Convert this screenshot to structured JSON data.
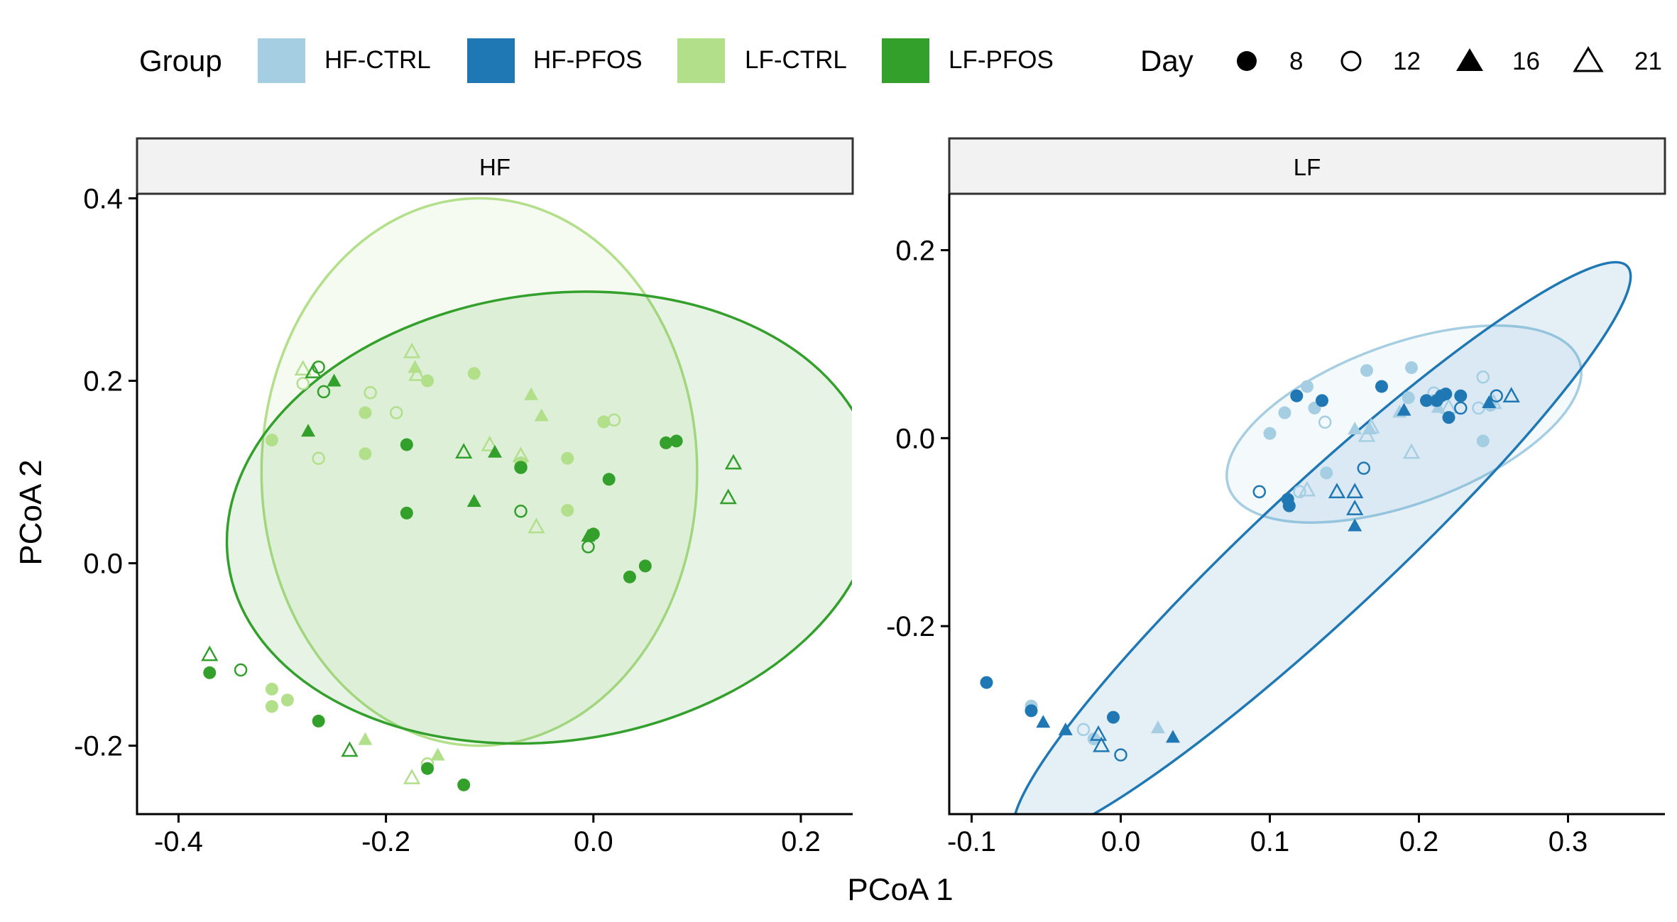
{
  "legend": {
    "group_title": "Group",
    "groups": [
      {
        "name": "HF-CTRL",
        "color": "#a6cee3"
      },
      {
        "name": "HF-PFOS",
        "color": "#1f78b4"
      },
      {
        "name": "LF-CTRL",
        "color": "#b2df8a"
      },
      {
        "name": "LF-PFOS",
        "color": "#33a02c"
      }
    ],
    "day_title": "Day",
    "days": [
      {
        "label": "8",
        "shape": "filled-circle"
      },
      {
        "label": "12",
        "shape": "open-circle"
      },
      {
        "label": "16",
        "shape": "filled-triangle"
      },
      {
        "label": "21",
        "shape": "open-triangle"
      }
    ]
  },
  "chart_data": [
    {
      "type": "scatter",
      "panel": "HF",
      "xlabel": "PCoA 1",
      "ylabel": "PCoA 2",
      "xlim": [
        -0.44,
        0.25
      ],
      "ylim": [
        -0.275,
        0.405
      ],
      "xticks": [
        "-0.4",
        "-0.2",
        "0.0",
        "0.2"
      ],
      "xtick_values": [
        -0.4,
        -0.2,
        0.0,
        0.2
      ],
      "yticks": [
        "0.4",
        "0.2",
        "0.0",
        "-0.2"
      ],
      "ytick_values": [
        0.4,
        0.2,
        0.0,
        -0.2
      ],
      "ellipses": [
        {
          "group": "LF-CTRL",
          "color": "#b2df8a",
          "center": [
            -0.11,
            0.1
          ],
          "rx": 0.21,
          "ry": 0.3,
          "angle": 0
        },
        {
          "group": "LF-PFOS",
          "color": "#33a02c",
          "center": [
            -0.04,
            0.05
          ],
          "rx": 0.315,
          "ry": 0.245,
          "angle": 8
        }
      ],
      "series": [
        {
          "name": "LF-CTRL",
          "color": "#b2df8a",
          "points": [
            [
              -0.31,
              0.135,
              8
            ],
            [
              -0.22,
              0.165,
              8
            ],
            [
              -0.22,
              0.12,
              8
            ],
            [
              -0.16,
              0.2,
              8
            ],
            [
              -0.115,
              0.208,
              8
            ],
            [
              -0.07,
              0.11,
              8
            ],
            [
              -0.025,
              0.115,
              8
            ],
            [
              -0.025,
              0.058,
              8
            ],
            [
              0.01,
              0.155,
              8
            ],
            [
              -0.31,
              -0.138,
              8
            ],
            [
              -0.31,
              -0.157,
              8
            ],
            [
              -0.295,
              -0.15,
              8
            ],
            [
              -0.28,
              0.197,
              12
            ],
            [
              -0.265,
              0.115,
              12
            ],
            [
              -0.215,
              0.187,
              12
            ],
            [
              -0.19,
              0.165,
              12
            ],
            [
              0.02,
              0.157,
              12
            ],
            [
              -0.16,
              -0.22,
              12
            ],
            [
              -0.172,
              0.215,
              16
            ],
            [
              -0.06,
              0.185,
              16
            ],
            [
              -0.05,
              0.162,
              16
            ],
            [
              -0.22,
              -0.193,
              16
            ],
            [
              -0.15,
              -0.21,
              16
            ],
            [
              -0.28,
              0.213,
              21
            ],
            [
              -0.175,
              0.232,
              21
            ],
            [
              -0.17,
              0.207,
              21
            ],
            [
              -0.1,
              0.13,
              21
            ],
            [
              -0.07,
              0.118,
              21
            ],
            [
              -0.055,
              0.04,
              21
            ],
            [
              -0.175,
              -0.235,
              21
            ]
          ]
        },
        {
          "name": "LF-PFOS",
          "color": "#33a02c",
          "points": [
            [
              -0.18,
              0.13,
              8
            ],
            [
              -0.18,
              0.055,
              8
            ],
            [
              -0.07,
              0.105,
              8
            ],
            [
              0.015,
              0.092,
              8
            ],
            [
              0.0,
              0.032,
              8
            ],
            [
              0.07,
              0.132,
              8
            ],
            [
              0.08,
              0.134,
              8
            ],
            [
              0.035,
              -0.015,
              8
            ],
            [
              0.05,
              -0.003,
              8
            ],
            [
              -0.37,
              -0.12,
              8
            ],
            [
              -0.265,
              -0.173,
              8
            ],
            [
              -0.16,
              -0.225,
              8
            ],
            [
              -0.125,
              -0.243,
              8
            ],
            [
              -0.265,
              0.215,
              12
            ],
            [
              -0.26,
              0.188,
              12
            ],
            [
              -0.07,
              0.105,
              12
            ],
            [
              -0.07,
              0.057,
              12
            ],
            [
              -0.005,
              0.018,
              12
            ],
            [
              -0.34,
              -0.117,
              12
            ],
            [
              -0.25,
              0.2,
              16
            ],
            [
              -0.275,
              0.145,
              16
            ],
            [
              -0.095,
              0.122,
              16
            ],
            [
              -0.115,
              0.068,
              16
            ],
            [
              -0.005,
              0.03,
              16
            ],
            [
              -0.27,
              0.21,
              21
            ],
            [
              -0.125,
              0.122,
              21
            ],
            [
              0.135,
              0.11,
              21
            ],
            [
              0.13,
              0.072,
              21
            ],
            [
              -0.37,
              -0.1,
              21
            ],
            [
              -0.235,
              -0.205,
              21
            ]
          ]
        }
      ]
    },
    {
      "type": "scatter",
      "panel": "LF",
      "xlabel": "PCoA 1",
      "ylabel": "PCoA 2",
      "xlim": [
        -0.115,
        0.365
      ],
      "ylim": [
        -0.4,
        0.26
      ],
      "xticks": [
        "-0.1",
        "0.0",
        "0.1",
        "0.2",
        "0.3"
      ],
      "xtick_values": [
        -0.1,
        0.0,
        0.1,
        0.2,
        0.3
      ],
      "yticks": [
        "0.2",
        "0.0",
        "-0.2"
      ],
      "ytick_values": [
        0.2,
        0.0,
        -0.2
      ],
      "ellipses": [
        {
          "group": "HF-CTRL",
          "color": "#a6cee3",
          "center": [
            0.19,
            0.015
          ],
          "rx": 0.125,
          "ry": 0.085,
          "angle": 20
        },
        {
          "group": "HF-PFOS",
          "color": "#1f78b4",
          "center": [
            0.135,
            -0.12
          ],
          "rx": 0.28,
          "ry": 0.07,
          "angle": 43
        }
      ],
      "series": [
        {
          "name": "HF-CTRL",
          "color": "#a6cee3",
          "points": [
            [
              0.1,
              0.005,
              8
            ],
            [
              0.11,
              0.027,
              8
            ],
            [
              0.125,
              0.055,
              8
            ],
            [
              0.13,
              0.032,
              8
            ],
            [
              0.138,
              -0.037,
              8
            ],
            [
              0.165,
              0.072,
              8
            ],
            [
              0.195,
              0.075,
              8
            ],
            [
              0.193,
              0.043,
              8
            ],
            [
              0.21,
              0.04,
              8
            ],
            [
              0.243,
              -0.003,
              8
            ],
            [
              0.248,
              0.035,
              8
            ],
            [
              -0.06,
              -0.285,
              8
            ],
            [
              -0.018,
              -0.32,
              8
            ],
            [
              0.137,
              0.017,
              12
            ],
            [
              0.12,
              -0.057,
              12
            ],
            [
              0.21,
              0.048,
              12
            ],
            [
              0.24,
              0.032,
              12
            ],
            [
              0.243,
              0.065,
              12
            ],
            [
              -0.025,
              -0.31,
              12
            ],
            [
              0.157,
              0.01,
              16
            ],
            [
              0.167,
              0.01,
              16
            ],
            [
              0.187,
              0.028,
              16
            ],
            [
              0.213,
              0.033,
              16
            ],
            [
              0.025,
              -0.308,
              16
            ],
            [
              0.125,
              -0.055,
              21
            ],
            [
              0.165,
              0.003,
              21
            ],
            [
              0.168,
              0.012,
              21
            ],
            [
              0.195,
              -0.015,
              21
            ],
            [
              0.22,
              0.033,
              21
            ],
            [
              0.25,
              0.038,
              21
            ]
          ]
        },
        {
          "name": "HF-PFOS",
          "color": "#1f78b4",
          "points": [
            [
              0.118,
              0.045,
              8
            ],
            [
              0.135,
              0.04,
              8
            ],
            [
              0.175,
              0.055,
              8
            ],
            [
              0.205,
              0.04,
              8
            ],
            [
              0.212,
              0.04,
              8
            ],
            [
              0.215,
              0.045,
              8
            ],
            [
              0.218,
              0.047,
              8
            ],
            [
              0.22,
              0.022,
              8
            ],
            [
              0.228,
              0.045,
              8
            ],
            [
              0.112,
              -0.065,
              8
            ],
            [
              0.113,
              -0.072,
              8
            ],
            [
              -0.09,
              -0.26,
              8
            ],
            [
              -0.06,
              -0.29,
              8
            ],
            [
              -0.005,
              -0.297,
              8
            ],
            [
              0.093,
              -0.057,
              12
            ],
            [
              0.163,
              -0.032,
              12
            ],
            [
              0.228,
              0.032,
              12
            ],
            [
              0.252,
              0.045,
              12
            ],
            [
              0.0,
              -0.337,
              12
            ],
            [
              0.19,
              0.03,
              16
            ],
            [
              0.247,
              0.038,
              16
            ],
            [
              0.157,
              -0.093,
              16
            ],
            [
              -0.052,
              -0.302,
              16
            ],
            [
              -0.037,
              -0.31,
              16
            ],
            [
              0.035,
              -0.318,
              16
            ],
            [
              0.145,
              -0.057,
              21
            ],
            [
              0.157,
              -0.057,
              21
            ],
            [
              0.157,
              -0.075,
              21
            ],
            [
              0.262,
              0.045,
              21
            ],
            [
              -0.015,
              -0.315,
              21
            ],
            [
              -0.013,
              -0.327,
              21
            ]
          ]
        }
      ]
    }
  ],
  "xaxis_title": "PCoA 1",
  "yaxis_title": "PCoA 2"
}
